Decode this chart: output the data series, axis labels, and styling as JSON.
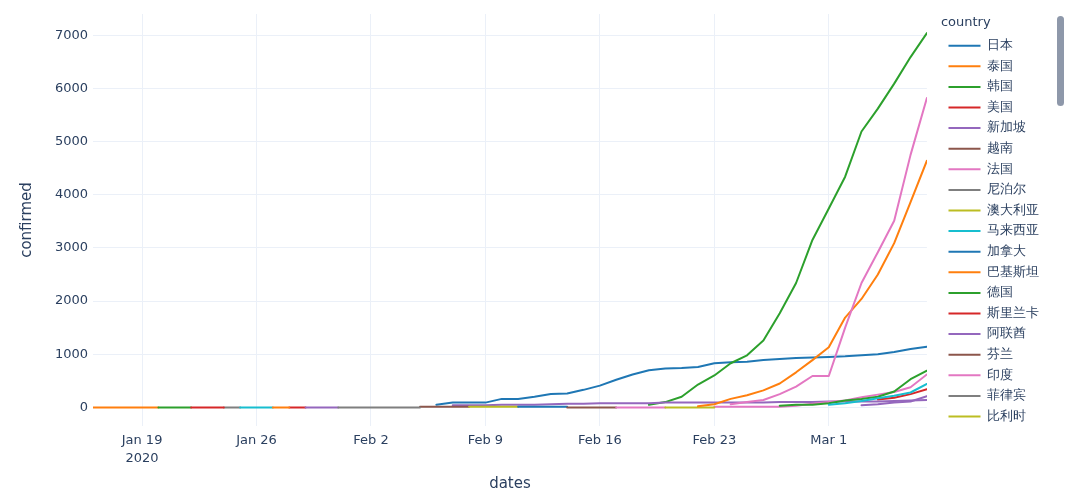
{
  "chart_data": {
    "type": "line",
    "xlabel": "dates",
    "ylabel": "confirmed",
    "legend_title": "country",
    "legend": "right",
    "grid": true,
    "marker": "none",
    "xlim": [
      "2020-01-16",
      "2020-03-07"
    ],
    "xticks": [
      {
        "value": "2020-01-19",
        "label": "Jan 19\n2020"
      },
      {
        "value": "2020-01-26",
        "label": "Jan 26"
      },
      {
        "value": "2020-02-02",
        "label": "Feb 2"
      },
      {
        "value": "2020-02-09",
        "label": "Feb 9"
      },
      {
        "value": "2020-02-16",
        "label": "Feb 16"
      },
      {
        "value": "2020-02-23",
        "label": "Feb 23"
      },
      {
        "value": "2020-03-01",
        "label": "Mar 1"
      }
    ],
    "ylim": [
      -350,
      7400
    ],
    "yticks": [
      0,
      1000,
      2000,
      3000,
      4000,
      5000,
      6000,
      7000
    ],
    "x": [
      "2020-01-16",
      "2020-01-17",
      "2020-01-18",
      "2020-01-19",
      "2020-01-20",
      "2020-01-21",
      "2020-01-22",
      "2020-01-23",
      "2020-01-24",
      "2020-01-25",
      "2020-01-26",
      "2020-01-27",
      "2020-01-28",
      "2020-01-29",
      "2020-01-30",
      "2020-01-31",
      "2020-02-01",
      "2020-02-02",
      "2020-02-03",
      "2020-02-04",
      "2020-02-05",
      "2020-02-06",
      "2020-02-07",
      "2020-02-08",
      "2020-02-09",
      "2020-02-10",
      "2020-02-11",
      "2020-02-12",
      "2020-02-13",
      "2020-02-14",
      "2020-02-15",
      "2020-02-16",
      "2020-02-17",
      "2020-02-18",
      "2020-02-19",
      "2020-02-20",
      "2020-02-21",
      "2020-02-22",
      "2020-02-23",
      "2020-02-24",
      "2020-02-25",
      "2020-02-26",
      "2020-02-27",
      "2020-02-28",
      "2020-02-29",
      "2020-03-01",
      "2020-03-02",
      "2020-03-03",
      "2020-03-04",
      "2020-03-05",
      "2020-03-06",
      "2020-03-07"
    ],
    "series": [
      {
        "name": "日本",
        "color": "#1f77b4",
        "values": [
          null,
          null,
          null,
          null,
          null,
          null,
          null,
          null,
          null,
          null,
          null,
          null,
          null,
          null,
          null,
          null,
          null,
          null,
          null,
          null,
          null,
          50,
          90,
          90,
          90,
          160,
          160,
          200,
          250,
          260,
          330,
          410,
          520,
          620,
          700,
          730,
          740,
          760,
          830,
          850,
          860,
          890,
          910,
          930,
          940,
          950,
          960,
          980,
          1000,
          1040,
          1100,
          1140
        ]
      },
      {
        "name": "泰国",
        "color": "#ff7f0e",
        "values": [
          0,
          0,
          0,
          0,
          0,
          null,
          null,
          null,
          null,
          null,
          null,
          null,
          null,
          null,
          null,
          null,
          null,
          null,
          null,
          null,
          null,
          null,
          null,
          null,
          null,
          null,
          null,
          null,
          null,
          null,
          null,
          null,
          null,
          null,
          null,
          null,
          null,
          null,
          null,
          null,
          null,
          null,
          null,
          null,
          null,
          null,
          null,
          null,
          null,
          null,
          null,
          null
        ]
      },
      {
        "name": "韩国",
        "color": "#2ca02c",
        "values": [
          null,
          null,
          null,
          null,
          0,
          0,
          0,
          null,
          null,
          null,
          null,
          null,
          null,
          null,
          null,
          null,
          null,
          null,
          null,
          null,
          null,
          null,
          null,
          null,
          null,
          null,
          null,
          null,
          null,
          null,
          null,
          null,
          null,
          null,
          50,
          100,
          200,
          430,
          600,
          830,
          980,
          1260,
          1770,
          2340,
          3150,
          3740,
          4340,
          5190,
          5620,
          6090,
          6590,
          7040
        ]
      },
      {
        "name": "美国",
        "color": "#d62728",
        "values": [
          null,
          null,
          null,
          null,
          null,
          null,
          null,
          null,
          null,
          null,
          null,
          null,
          0,
          0,
          null,
          null,
          null,
          null,
          null,
          null,
          null,
          null,
          null,
          null,
          null,
          null,
          null,
          null,
          null,
          null,
          null,
          null,
          null,
          null,
          null,
          null,
          null,
          null,
          null,
          null,
          null,
          null,
          null,
          null,
          null,
          null,
          null,
          null,
          150,
          180,
          250,
          340
        ]
      },
      {
        "name": "新加坡",
        "color": "#9467bd",
        "values": [
          null,
          null,
          null,
          null,
          null,
          null,
          null,
          null,
          null,
          null,
          null,
          null,
          null,
          null,
          null,
          null,
          null,
          null,
          null,
          null,
          null,
          null,
          40,
          40,
          40,
          50,
          50,
          50,
          60,
          70,
          70,
          80,
          80,
          80,
          80,
          90,
          90,
          90,
          90,
          90,
          90,
          90,
          100,
          100,
          100,
          110,
          110,
          110,
          110,
          120,
          130,
          140
        ]
      },
      {
        "name": "越南",
        "color": "#8c564b",
        "values": [
          null,
          null,
          null,
          null,
          null,
          null,
          null,
          null,
          null,
          null,
          null,
          null,
          null,
          null,
          null,
          null,
          null,
          null,
          null,
          null,
          10,
          10,
          10,
          10,
          null,
          null,
          null,
          null,
          null,
          null,
          null,
          null,
          null,
          null,
          null,
          null,
          null,
          null,
          null,
          null,
          null,
          null,
          null,
          null,
          null,
          null,
          null,
          null,
          null,
          null,
          null,
          null
        ]
      },
      {
        "name": "法国",
        "color": "#e377c2",
        "values": [
          null,
          null,
          null,
          null,
          null,
          null,
          null,
          null,
          null,
          null,
          null,
          null,
          null,
          null,
          null,
          null,
          null,
          null,
          null,
          null,
          null,
          null,
          null,
          null,
          null,
          null,
          null,
          null,
          null,
          null,
          null,
          null,
          null,
          null,
          null,
          null,
          null,
          null,
          10,
          10,
          10,
          10,
          10,
          30,
          70,
          100,
          130,
          190,
          240,
          290,
          380,
          620
        ]
      },
      {
        "name": "尼泊尔",
        "color": "#7f7f7f",
        "values": [
          null,
          null,
          null,
          null,
          null,
          null,
          null,
          null,
          0,
          0,
          null,
          null,
          null,
          null,
          null,
          null,
          null,
          null,
          null,
          null,
          null,
          null,
          null,
          null,
          null,
          null,
          null,
          null,
          null,
          null,
          null,
          null,
          null,
          null,
          null,
          null,
          null,
          null,
          null,
          null,
          null,
          null,
          null,
          null,
          null,
          null,
          null,
          null,
          null,
          null,
          null,
          null
        ]
      },
      {
        "name": "澳大利亚",
        "color": "#bcbd22",
        "values": [
          null,
          null,
          null,
          null,
          null,
          null,
          null,
          null,
          null,
          null,
          null,
          null,
          null,
          null,
          null,
          null,
          null,
          null,
          null,
          null,
          null,
          null,
          null,
          10,
          10,
          10,
          10,
          null,
          null,
          null,
          null,
          null,
          null,
          null,
          null,
          null,
          null,
          null,
          null,
          null,
          null,
          null,
          null,
          null,
          null,
          null,
          null,
          null,
          null,
          null,
          null,
          null
        ]
      },
      {
        "name": "马来西亚",
        "color": "#17becf",
        "values": [
          null,
          null,
          null,
          null,
          null,
          null,
          null,
          null,
          null,
          0,
          0,
          0,
          null,
          null,
          null,
          null,
          null,
          null,
          null,
          null,
          null,
          null,
          null,
          null,
          null,
          null,
          null,
          null,
          null,
          null,
          null,
          null,
          null,
          null,
          null,
          null,
          null,
          null,
          null,
          null,
          null,
          null,
          null,
          null,
          null,
          null,
          null,
          null,
          null,
          null,
          null,
          null
        ]
      },
      {
        "name": "加拿大",
        "color": "#1f77b4",
        "values": [
          null,
          null,
          null,
          null,
          null,
          null,
          null,
          null,
          null,
          null,
          null,
          null,
          null,
          null,
          null,
          null,
          null,
          null,
          null,
          null,
          null,
          null,
          null,
          null,
          null,
          null,
          10,
          10,
          10,
          10,
          null,
          null,
          null,
          null,
          null,
          null,
          null,
          null,
          null,
          null,
          null,
          null,
          null,
          null,
          null,
          null,
          null,
          null,
          null,
          null,
          null,
          null
        ]
      },
      {
        "name": "巴基斯坦",
        "color": "#ff7f0e",
        "values": [
          null,
          null,
          null,
          null,
          null,
          null,
          null,
          null,
          null,
          null,
          null,
          0,
          0,
          null,
          null,
          null,
          null,
          null,
          null,
          null,
          null,
          null,
          null,
          null,
          null,
          null,
          null,
          null,
          null,
          null,
          null,
          null,
          null,
          null,
          null,
          null,
          null,
          null,
          null,
          null,
          null,
          null,
          null,
          null,
          null,
          null,
          null,
          null,
          null,
          null,
          null,
          null
        ]
      },
      {
        "name": "德国",
        "color": "#2ca02c",
        "values": [
          null,
          null,
          null,
          null,
          null,
          null,
          null,
          null,
          null,
          null,
          null,
          null,
          null,
          null,
          null,
          null,
          null,
          null,
          null,
          null,
          null,
          null,
          null,
          null,
          null,
          null,
          null,
          null,
          null,
          null,
          null,
          null,
          null,
          null,
          null,
          null,
          null,
          null,
          null,
          null,
          null,
          null,
          30,
          50,
          50,
          80,
          130,
          160,
          200,
          300,
          530,
          690
        ]
      },
      {
        "name": "斯里兰卡",
        "color": "#d62728",
        "values": [
          null,
          null,
          null,
          null,
          null,
          null,
          0,
          0,
          0,
          null,
          null,
          null,
          null,
          null,
          null,
          null,
          null,
          null,
          null,
          null,
          null,
          null,
          null,
          null,
          null,
          null,
          null,
          null,
          null,
          null,
          null,
          null,
          null,
          null,
          null,
          null,
          null,
          null,
          null,
          null,
          null,
          null,
          null,
          null,
          null,
          null,
          null,
          null,
          null,
          null,
          null,
          null
        ]
      },
      {
        "name": "阿联酋",
        "color": "#9467bd",
        "values": [
          null,
          null,
          null,
          null,
          null,
          null,
          null,
          null,
          null,
          null,
          null,
          null,
          null,
          0,
          0,
          0,
          null,
          null,
          null,
          null,
          null,
          null,
          null,
          null,
          null,
          null,
          null,
          null,
          null,
          null,
          null,
          null,
          null,
          null,
          null,
          null,
          null,
          null,
          null,
          null,
          null,
          null,
          null,
          null,
          null,
          null,
          null,
          null,
          null,
          null,
          null,
          null
        ]
      },
      {
        "name": "芬兰",
        "color": "#8c564b",
        "values": [
          null,
          null,
          null,
          null,
          null,
          null,
          null,
          null,
          null,
          null,
          null,
          null,
          null,
          null,
          null,
          null,
          null,
          null,
          null,
          null,
          null,
          null,
          null,
          null,
          null,
          null,
          null,
          null,
          null,
          0,
          0,
          0,
          0,
          null,
          null,
          null,
          null,
          null,
          null,
          null,
          null,
          null,
          null,
          null,
          null,
          null,
          null,
          null,
          null,
          null,
          null,
          null
        ]
      },
      {
        "name": "印度",
        "color": "#e377c2",
        "values": [
          null,
          null,
          null,
          null,
          null,
          null,
          null,
          null,
          null,
          null,
          null,
          null,
          null,
          null,
          null,
          null,
          null,
          null,
          null,
          null,
          null,
          null,
          null,
          null,
          null,
          null,
          null,
          null,
          null,
          null,
          null,
          null,
          0,
          0,
          0,
          0,
          null,
          null,
          null,
          null,
          null,
          null,
          null,
          null,
          null,
          null,
          null,
          null,
          null,
          null,
          null,
          null
        ]
      },
      {
        "name": "菲律宾",
        "color": "#7f7f7f",
        "values": [
          null,
          null,
          null,
          null,
          null,
          null,
          null,
          null,
          null,
          null,
          null,
          null,
          null,
          null,
          null,
          0,
          0,
          0,
          0,
          0,
          0,
          null,
          null,
          null,
          null,
          null,
          null,
          null,
          null,
          null,
          null,
          null,
          null,
          null,
          null,
          null,
          null,
          null,
          null,
          null,
          null,
          null,
          null,
          null,
          null,
          null,
          null,
          null,
          null,
          null,
          null,
          null
        ]
      },
      {
        "name": "比利时",
        "color": "#bcbd22",
        "values": [
          null,
          null,
          null,
          null,
          null,
          null,
          null,
          null,
          null,
          null,
          null,
          null,
          null,
          null,
          null,
          null,
          null,
          null,
          null,
          null,
          null,
          null,
          null,
          null,
          null,
          null,
          null,
          null,
          null,
          null,
          null,
          null,
          null,
          null,
          null,
          0,
          0,
          0,
          0,
          null,
          null,
          null,
          null,
          null,
          null,
          null,
          null,
          null,
          null,
          null,
          null,
          null
        ]
      },
      {
        "color": "#ff7f0e",
        "values": [
          null,
          null,
          null,
          null,
          null,
          null,
          null,
          null,
          null,
          null,
          null,
          null,
          null,
          null,
          null,
          null,
          null,
          null,
          null,
          null,
          null,
          null,
          null,
          null,
          null,
          null,
          null,
          null,
          null,
          null,
          null,
          null,
          null,
          null,
          null,
          null,
          null,
          20,
          60,
          160,
          230,
          320,
          450,
          660,
          890,
          1130,
          1690,
          2040,
          2500,
          3090,
          3860,
          4640
        ]
      },
      {
        "color": "#e377c2",
        "values": [
          null,
          null,
          null,
          null,
          null,
          null,
          null,
          null,
          null,
          null,
          null,
          null,
          null,
          null,
          null,
          null,
          null,
          null,
          null,
          null,
          null,
          null,
          null,
          null,
          null,
          null,
          null,
          null,
          null,
          null,
          null,
          null,
          null,
          null,
          null,
          null,
          null,
          null,
          null,
          60,
          100,
          140,
          250,
          390,
          590,
          590,
          1500,
          2340,
          2920,
          3510,
          4750,
          5820
        ]
      },
      {
        "color": "#17becf",
        "values": [
          null,
          null,
          null,
          null,
          null,
          null,
          null,
          null,
          null,
          null,
          null,
          null,
          null,
          null,
          null,
          null,
          null,
          null,
          null,
          null,
          null,
          null,
          null,
          null,
          null,
          null,
          null,
          null,
          null,
          null,
          null,
          null,
          null,
          null,
          null,
          null,
          null,
          null,
          null,
          null,
          null,
          null,
          null,
          null,
          null,
          50,
          80,
          120,
          170,
          220,
          280,
          440
        ]
      },
      {
        "color": "#9467bd",
        "values": [
          null,
          null,
          null,
          null,
          null,
          null,
          null,
          null,
          null,
          null,
          null,
          null,
          null,
          null,
          null,
          null,
          null,
          null,
          null,
          null,
          null,
          null,
          null,
          null,
          null,
          null,
          null,
          null,
          null,
          null,
          null,
          null,
          null,
          null,
          null,
          null,
          null,
          null,
          null,
          null,
          null,
          null,
          null,
          null,
          null,
          null,
          null,
          40,
          60,
          90,
          110,
          210
        ]
      }
    ]
  }
}
